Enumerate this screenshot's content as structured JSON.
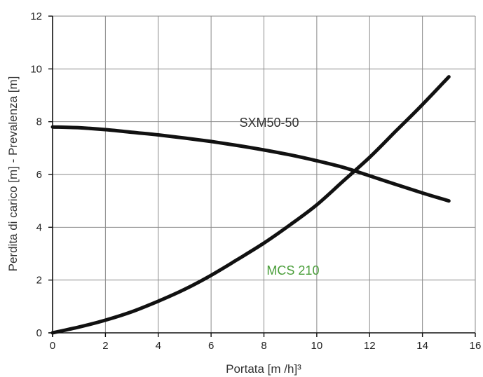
{
  "chart_data": {
    "type": "line",
    "title": "",
    "xlabel": "Portata [m /h]³",
    "ylabel": "Perdita di carico [m] - Prevalenza [m]",
    "xlim": [
      0,
      16
    ],
    "ylim": [
      0,
      12
    ],
    "xticks": [
      0,
      2,
      4,
      6,
      8,
      10,
      12,
      14,
      16
    ],
    "yticks": [
      0,
      2,
      4,
      6,
      8,
      10,
      12
    ],
    "grid": true,
    "series": [
      {
        "name": "SXM50-50",
        "color": "#111111",
        "label_color": "#333333",
        "x": [
          0,
          1,
          2,
          3,
          4,
          5,
          6,
          7,
          8,
          9,
          10,
          11,
          12,
          13,
          14,
          15
        ],
        "y": [
          7.8,
          7.77,
          7.7,
          7.6,
          7.5,
          7.38,
          7.25,
          7.1,
          6.93,
          6.74,
          6.52,
          6.27,
          5.95,
          5.62,
          5.3,
          5.0
        ]
      },
      {
        "name": "MCS 210",
        "color": "#111111",
        "label_color": "#4a9e3a",
        "x": [
          0,
          1,
          2,
          3,
          4,
          5,
          6,
          7,
          8,
          9,
          10,
          11,
          12,
          13,
          14,
          15
        ],
        "y": [
          0,
          0.22,
          0.48,
          0.8,
          1.2,
          1.65,
          2.18,
          2.78,
          3.4,
          4.1,
          4.85,
          5.75,
          6.65,
          7.65,
          8.65,
          9.7
        ]
      }
    ]
  }
}
